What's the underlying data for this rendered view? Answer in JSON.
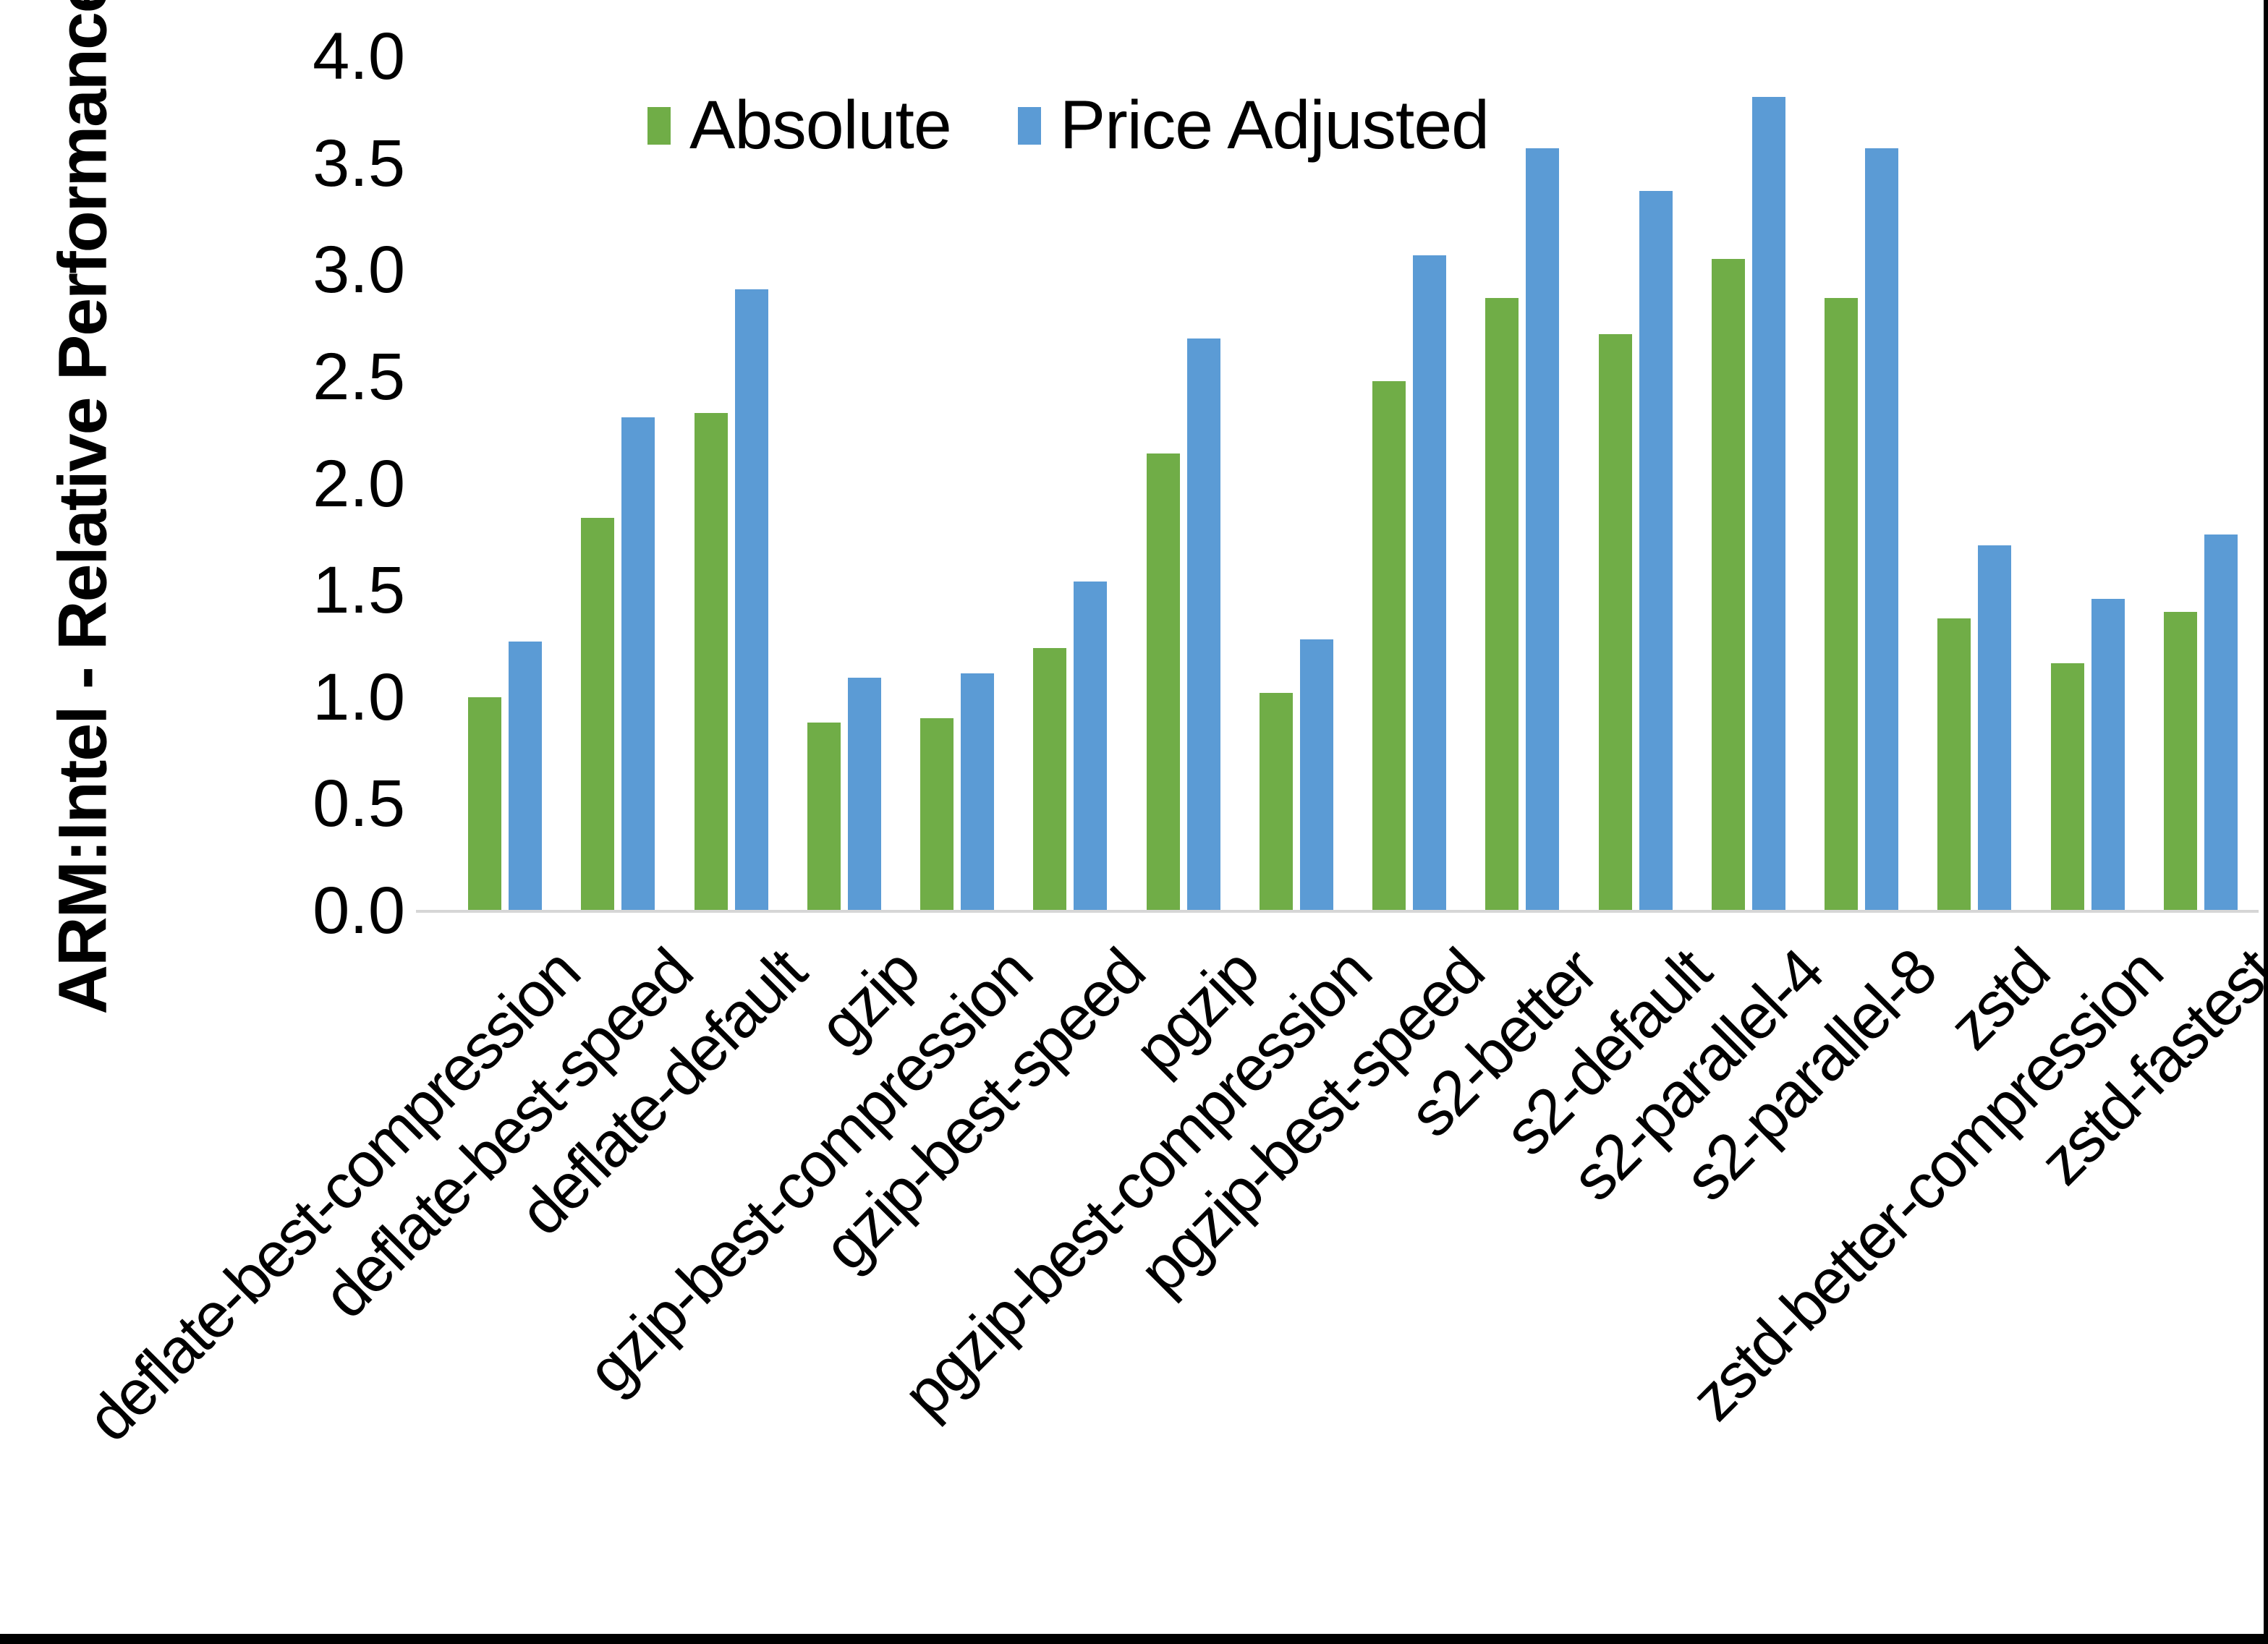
{
  "chart_data": {
    "type": "bar",
    "title": "",
    "xlabel": "",
    "ylabel": "ARM:Intel - Relative Performance",
    "ylim": [
      0.0,
      4.0
    ],
    "ytick_step": 0.5,
    "yticks": [
      "0.0",
      "0.5",
      "1.0",
      "1.5",
      "2.0",
      "2.5",
      "3.0",
      "3.5",
      "4.0"
    ],
    "grid": false,
    "legend_position": "top-center",
    "x_label_rotation_deg": 45,
    "categories": [
      "deflate-best-compression",
      "deflate-best-speed",
      "deflate-default",
      "gzip",
      "gzip-best-compression",
      "gzip-best-speed",
      "pgzip",
      "pgzip-best-compression",
      "pgzip-best-speed",
      "s2-better",
      "s2-default",
      "s2-parallel-4",
      "s2-parallel-8",
      "zstd",
      "zstd-better-compression",
      "zstd-fastest"
    ],
    "series": [
      {
        "name": "Absolute",
        "color": "#70AD47",
        "values": [
          1.0,
          1.84,
          2.33,
          0.88,
          0.9,
          1.23,
          2.14,
          1.02,
          2.48,
          2.87,
          2.7,
          3.05,
          2.87,
          1.37,
          1.16,
          1.4
        ]
      },
      {
        "name": "Price Adjusted",
        "color": "#5B9BD5",
        "values": [
          1.26,
          2.31,
          2.91,
          1.09,
          1.11,
          1.54,
          2.68,
          1.27,
          3.07,
          3.57,
          3.37,
          3.81,
          3.57,
          1.71,
          1.46,
          1.76
        ]
      }
    ],
    "axis_line_color": "#D6D6D6",
    "text_color": "#000000",
    "background_color": "#FFFFFF",
    "border_color": "#000000"
  }
}
